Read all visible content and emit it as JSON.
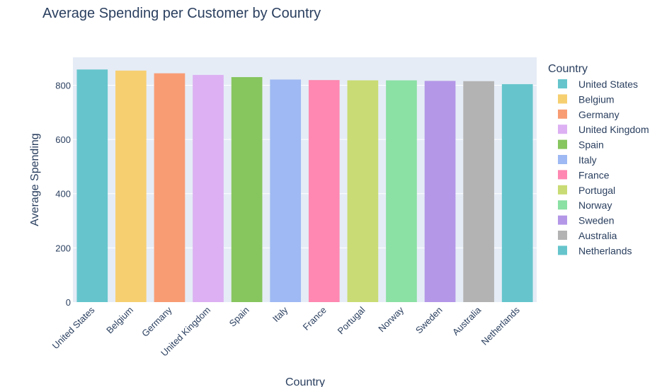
{
  "chart_data": {
    "type": "bar",
    "title": "Average Spending per Customer by Country",
    "xlabel": "Country",
    "ylabel": "Average Spending",
    "legend_title": "Country",
    "legend_position": "right",
    "grid": true,
    "ylim": [
      0,
      903
    ],
    "yticks": [
      0,
      200,
      400,
      600,
      800
    ],
    "categories": [
      "United States",
      "Belgium",
      "Germany",
      "United Kingdom",
      "Spain",
      "Italy",
      "France",
      "Portugal",
      "Norway",
      "Sweden",
      "Australia",
      "Netherlands"
    ],
    "values": [
      858,
      854,
      844,
      838,
      830,
      821,
      819,
      818,
      818,
      816,
      815,
      804
    ],
    "colors": [
      "#66C5CC",
      "#F6CF71",
      "#F89C74",
      "#DCB0F2",
      "#87C55F",
      "#9EB9F3",
      "#FE88B1",
      "#C9DB74",
      "#8BE0A4",
      "#B497E7",
      "#B3B3B3",
      "#66C5CC"
    ]
  }
}
